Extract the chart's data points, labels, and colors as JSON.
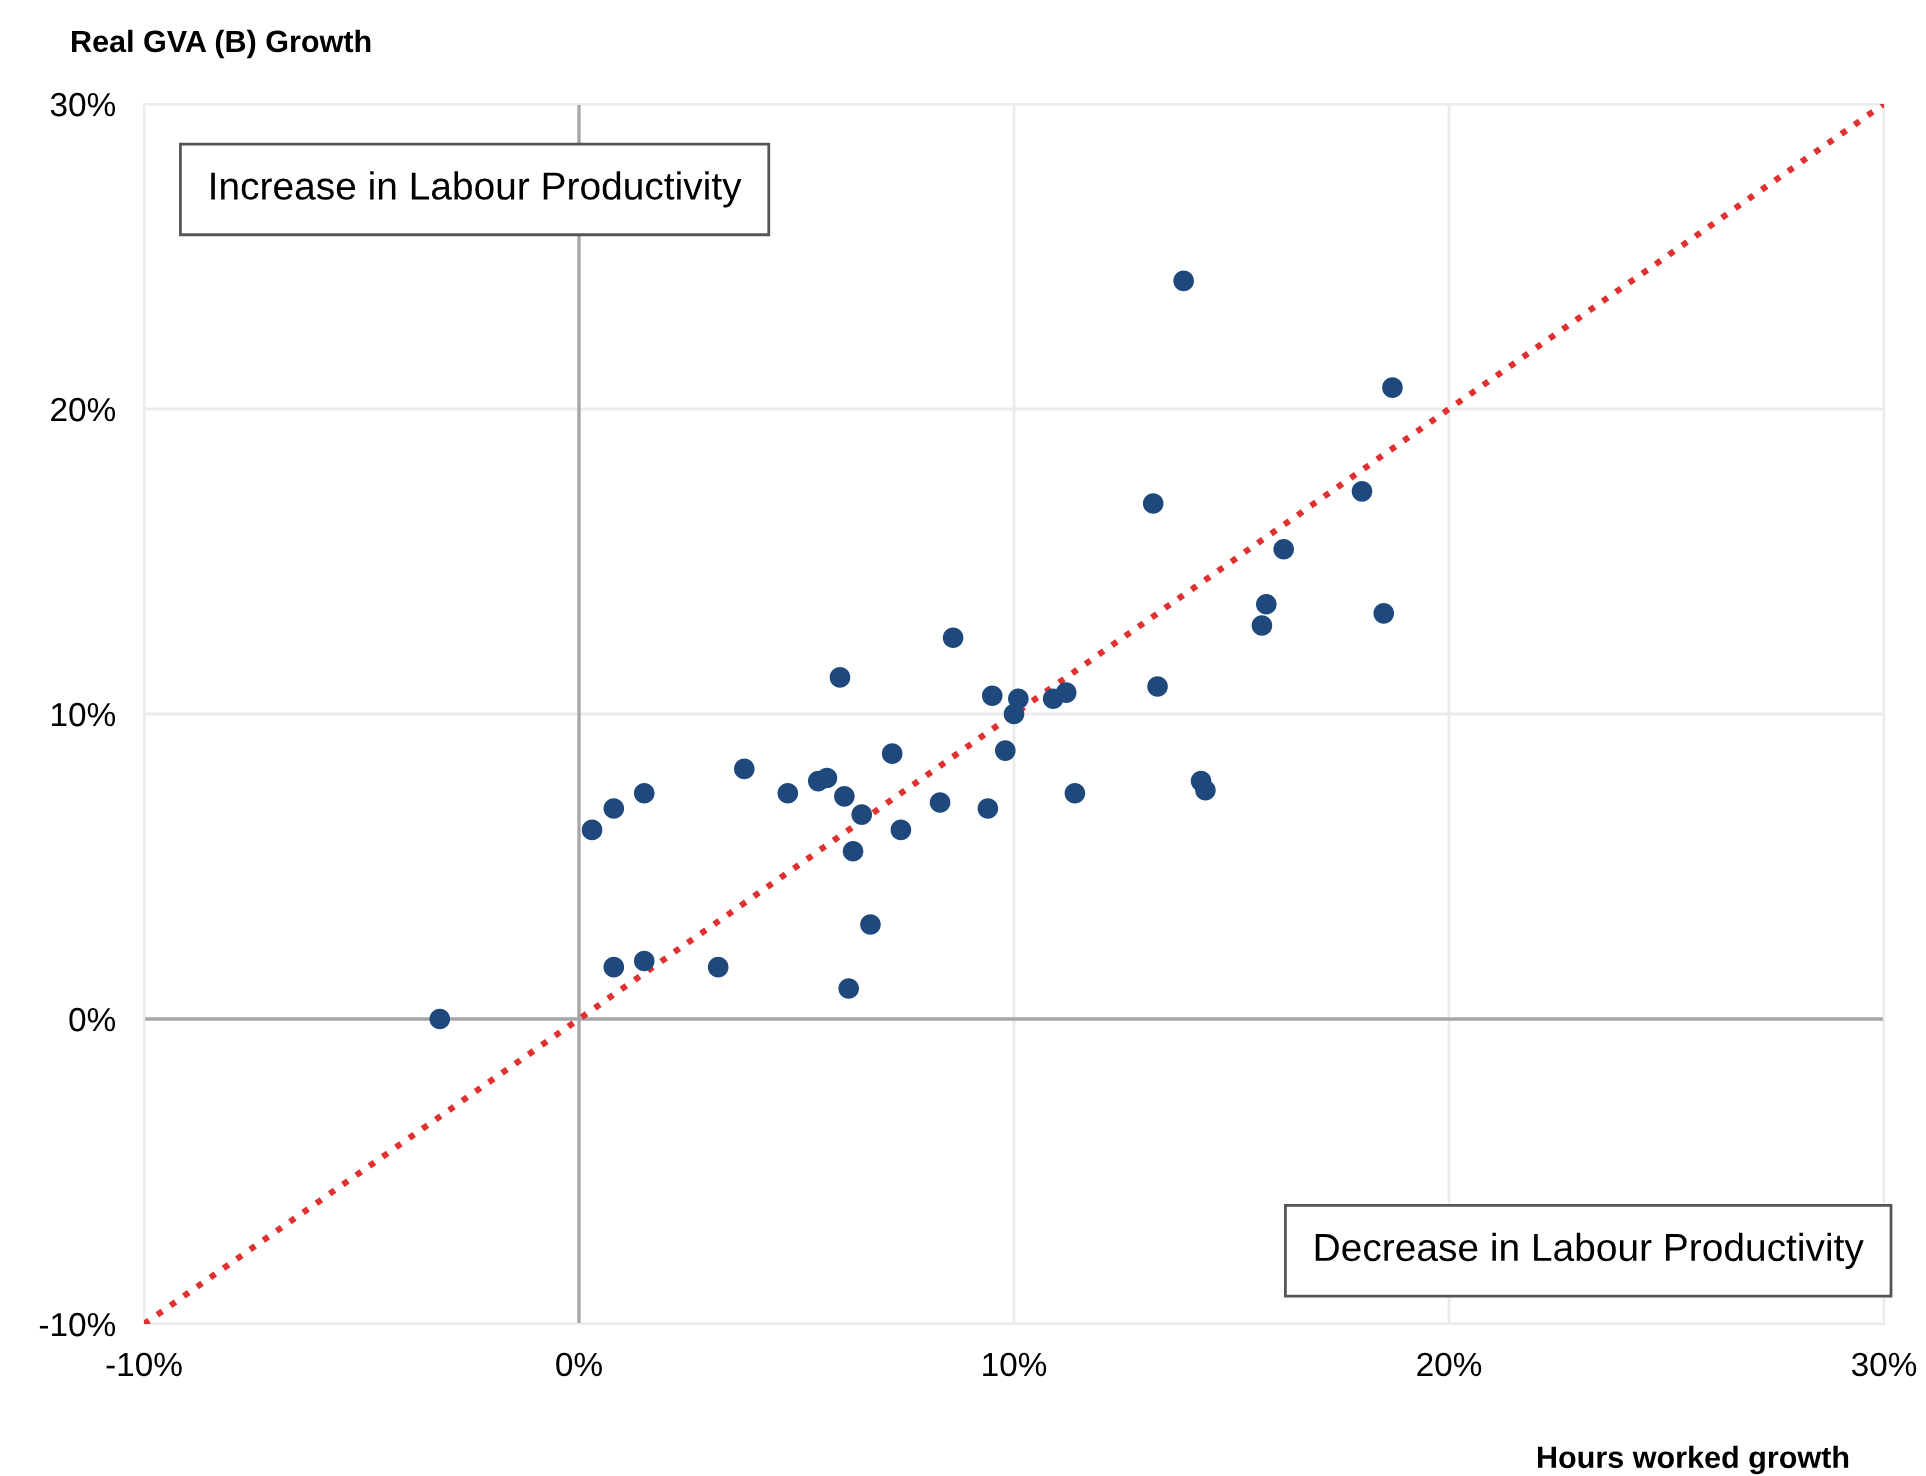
{
  "chart_data": {
    "type": "scatter",
    "xlabel": "Hours worked growth",
    "ylabel": "Real GVA (B) Growth",
    "annotations": [
      "Increase in Labour Productivity",
      "Decrease in Labour Productivity"
    ],
    "series": [
      {
        "color": "#1f497d",
        "marker": "circle",
        "x": [
          -3.2,
          0.3,
          0.8,
          1.5,
          0.8,
          1.5,
          3.2,
          3.8,
          4.8,
          5.5,
          5.7,
          6.0,
          6.1,
          6.3,
          6.5,
          6.2,
          6.7,
          7.2,
          7.4,
          8.3,
          8.6,
          9.4,
          9.5,
          9.8,
          10.1,
          10.0,
          10.9,
          11.2,
          11.4,
          13.2,
          13.3,
          13.9,
          14.3,
          14.4,
          15.7,
          15.8,
          16.2,
          18.0,
          18.5,
          18.7
        ],
        "values": [
          0.0,
          6.2,
          6.9,
          7.4,
          1.7,
          1.9,
          1.7,
          8.2,
          7.4,
          7.8,
          7.9,
          11.2,
          7.3,
          5.5,
          6.7,
          1.0,
          3.1,
          8.7,
          6.2,
          7.1,
          12.5,
          6.9,
          10.6,
          8.8,
          10.5,
          10.0,
          10.5,
          10.7,
          7.4,
          16.9,
          10.9,
          24.2,
          7.8,
          7.5,
          12.9,
          13.6,
          15.4,
          17.3,
          13.3,
          20.7
        ]
      },
      {
        "type": "line",
        "color": "#e03030",
        "line_style": "dotted",
        "marker": "none",
        "x": [
          -10,
          30
        ],
        "values": [
          -10,
          30
        ]
      }
    ],
    "xlim": [
      -10,
      30
    ],
    "ylim": [
      -10,
      30
    ],
    "xticks": [
      {
        "value": -10,
        "label": "-10%"
      },
      {
        "value": 0,
        "label": "0%"
      },
      {
        "value": 10,
        "label": "10%"
      },
      {
        "value": 20,
        "label": "20%"
      },
      {
        "value": 30,
        "label": "30%"
      }
    ],
    "yticks": [
      {
        "value": -10,
        "label": "-10%"
      },
      {
        "value": 0,
        "label": "0%"
      },
      {
        "value": 10,
        "label": "10%"
      },
      {
        "value": 20,
        "label": "20%"
      },
      {
        "value": 30,
        "label": "30%"
      }
    ],
    "grid": true
  }
}
